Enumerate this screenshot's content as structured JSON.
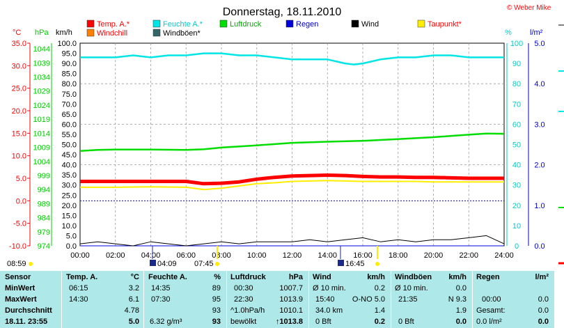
{
  "watermark": "© Weber Mike",
  "chart_data": {
    "type": "line",
    "title": "Donnerstag, 18.11.2010",
    "x_ticks": [
      "00:00",
      "02:00",
      "04:00",
      "06:00",
      "08:00",
      "10:00",
      "12:00",
      "14:00",
      "16:00",
      "18:00",
      "20:00",
      "22:00",
      "24:00"
    ],
    "axes": {
      "temp": {
        "label": "°C",
        "range": [
          -10,
          35
        ],
        "ticks": [
          "35.0",
          "30.0",
          "25.0",
          "20.0",
          "15.0",
          "10.0",
          "5.0",
          "0.0",
          "-5.0",
          "-10.0"
        ],
        "color": "#ff0000"
      },
      "pressure": {
        "label": "hPa",
        "range": [
          974,
          1046
        ],
        "ticks": [
          "1044",
          "1039",
          "1034",
          "1029",
          "1024",
          "1019",
          "1014",
          "1009",
          "1004",
          "999",
          "994",
          "989",
          "984",
          "979",
          "974"
        ],
        "color": "#00cc00"
      },
      "wind": {
        "label": "km/h",
        "range": [
          0,
          100
        ],
        "ticks": [
          "100.0",
          "95.0",
          "90.0",
          "85.0",
          "80.0",
          "75.0",
          "70.0",
          "65.0",
          "60.0",
          "55.0",
          "50.0",
          "45.0",
          "40.0",
          "35.0",
          "30.0",
          "25.0",
          "20.0",
          "15.0",
          "10.0",
          "5.0",
          "0.0"
        ],
        "color": "#000000"
      },
      "humidity": {
        "label": "%",
        "range": [
          0,
          100
        ],
        "ticks": [
          "100",
          "90",
          "80",
          "70",
          "60",
          "50",
          "40",
          "30",
          "20",
          "10",
          "0"
        ],
        "color": "#00cccc"
      },
      "rain": {
        "label": "l/m²",
        "range": [
          0,
          5
        ],
        "ticks": [
          "5.0",
          "4.0",
          "3.0",
          "2.0",
          "1.0",
          "0.0"
        ],
        "color": "#0000cc"
      }
    },
    "legend": [
      {
        "name": "Temp. A.*",
        "color": "#ff0000"
      },
      {
        "name": "Feuchte A.*",
        "color": "#00e5e5"
      },
      {
        "name": "Luftdruck",
        "color": "#00dd00"
      },
      {
        "name": "Regen",
        "color": "#0000dd"
      },
      {
        "name": "Wind",
        "color": "#000000"
      },
      {
        "name": "Taupunkt*",
        "color": "#ffee00"
      },
      {
        "name": "Windchill",
        "color": "#ff8000"
      },
      {
        "name": "Windböen*",
        "color": "#336666"
      }
    ],
    "series": [
      {
        "name": "Temp. A.*",
        "axis": "temp",
        "color": "#ff0000",
        "x": [
          0,
          2,
          4,
          6,
          7,
          8,
          9,
          10,
          11,
          12,
          13,
          14,
          15,
          16,
          17,
          18,
          19,
          20,
          21,
          22,
          23,
          24
        ],
        "values": [
          4.3,
          4.3,
          4.3,
          4.3,
          3.8,
          3.9,
          4.2,
          4.8,
          5.2,
          5.5,
          5.6,
          5.7,
          5.6,
          5.4,
          5.3,
          5.3,
          5.2,
          5.2,
          5.1,
          5.0,
          5.0,
          5.0
        ]
      },
      {
        "name": "Taupunkt*",
        "axis": "temp",
        "color": "#ffee00",
        "x": [
          0,
          2,
          4,
          6,
          7,
          8,
          9,
          10,
          11,
          12,
          13,
          14,
          15,
          16,
          17,
          18,
          19,
          20,
          21,
          22,
          23,
          24
        ],
        "values": [
          3.0,
          3.0,
          3.1,
          3.0,
          2.5,
          2.8,
          3.3,
          3.8,
          4.0,
          4.3,
          4.4,
          4.5,
          4.4,
          4.3,
          4.3,
          4.3,
          4.3,
          4.2,
          4.2,
          4.2,
          4.2,
          4.2
        ]
      },
      {
        "name": "Feuchte A.*",
        "axis": "humidity",
        "color": "#00e5e5",
        "x": [
          0,
          1,
          2,
          3,
          4,
          5,
          6,
          7,
          8,
          9,
          10,
          11,
          12,
          13,
          14,
          15,
          15.5,
          16,
          17,
          18,
          19,
          20,
          21,
          22,
          23,
          24
        ],
        "values": [
          93,
          93,
          93,
          94,
          93,
          94,
          94,
          95,
          95,
          94,
          94,
          93,
          92,
          92,
          92,
          90,
          89.5,
          90,
          92,
          93,
          93,
          94,
          94,
          93,
          93,
          93
        ],
        "label_values": {
          "min": "89",
          "max": "95",
          "avg": "93",
          "now": "93"
        }
      },
      {
        "name": "Luftdruck",
        "axis": "pressure",
        "color": "#00dd00",
        "x": [
          0,
          1,
          2,
          4,
          6,
          7,
          8,
          10,
          12,
          14,
          16,
          18,
          20,
          22,
          23,
          24
        ],
        "values": [
          1007.7,
          1008.1,
          1008.2,
          1008.2,
          1008.1,
          1008.3,
          1008.9,
          1009.7,
          1010.6,
          1011.0,
          1011.3,
          1011.9,
          1012.6,
          1013.5,
          1013.9,
          1013.8
        ]
      },
      {
        "name": "Regen",
        "axis": "rain",
        "color": "#0000dd",
        "x": [
          0,
          24
        ],
        "values": [
          0,
          0
        ]
      },
      {
        "name": "Wind",
        "axis": "wind",
        "color": "#000000",
        "x": [
          0,
          1,
          2,
          3,
          4,
          5,
          6,
          7,
          8,
          9,
          10,
          11,
          12,
          13,
          14,
          15,
          16,
          17,
          18,
          19,
          20,
          21,
          22,
          23,
          24
        ],
        "values": [
          1,
          2,
          1,
          0,
          2,
          1,
          0,
          1,
          2,
          1,
          2,
          2,
          2,
          3,
          2,
          3,
          4,
          2,
          3,
          2,
          3,
          3,
          4,
          5,
          1
        ]
      }
    ],
    "dotted_reference_line": {
      "axis": "temp",
      "value": 0
    }
  },
  "time_markers": {
    "left_time": "08:59",
    "sunrise": "04:09",
    "sunset_morning": "07:45",
    "mid": "16:45"
  },
  "stats": {
    "sensor_header": "Sensor",
    "row_labels": [
      "MinWert",
      "MaxWert",
      "Durchschnitt"
    ],
    "current_time": "18.11. 23:55",
    "temp": {
      "header": "Temp. A.",
      "unit": "°C",
      "min_time": "06:15",
      "min": "3.2",
      "max_time": "14:30",
      "max": "6.1",
      "avg": "4.78",
      "now": "5.0"
    },
    "humidity": {
      "header": "Feuchte A.",
      "unit": "%",
      "min_time": "14:35",
      "min": "89",
      "max_time": "07:30",
      "max": "95",
      "avg": "93",
      "abs": "6.32 g/m³",
      "now": "93"
    },
    "pressure": {
      "header": "Luftdruck",
      "unit": "hPa",
      "min_time": "00:30",
      "min": "1007.7",
      "max_time": "22:30",
      "max": "1013.9",
      "trend": "^1.0hPa/h",
      "avg": "1010.1",
      "weather": "bewölkt",
      "now": "↑1013.8"
    },
    "wind": {
      "header": "Wind",
      "unit": "km/h",
      "r1_label": "Ø 10 min.",
      "r1_val": "0.2",
      "r2_time": "15:40",
      "r2_dir": "O-NO 5.0",
      "r3_label": "34.0 km",
      "r3_val": "1.4",
      "r4_label": "0 Bft",
      "r4_val": "0.2"
    },
    "gust": {
      "header": "Windböen",
      "unit": "km/h",
      "r1_label": "Ø 10 min.",
      "r1_val": "0.0",
      "r2_time": "21:35",
      "r2_val": "N 9.3",
      "r3_val": "1.9",
      "r4_label": "0 Bft",
      "r4_val": "0.0"
    },
    "rain": {
      "header": "Regen",
      "unit": "l/m²",
      "r2_time": "00:00",
      "r2_val": "0.0",
      "r3_label": "Gesamt:",
      "r3_val": "0.0",
      "r4_label": "0.0 l/m²",
      "r4_val": "0.0"
    }
  }
}
